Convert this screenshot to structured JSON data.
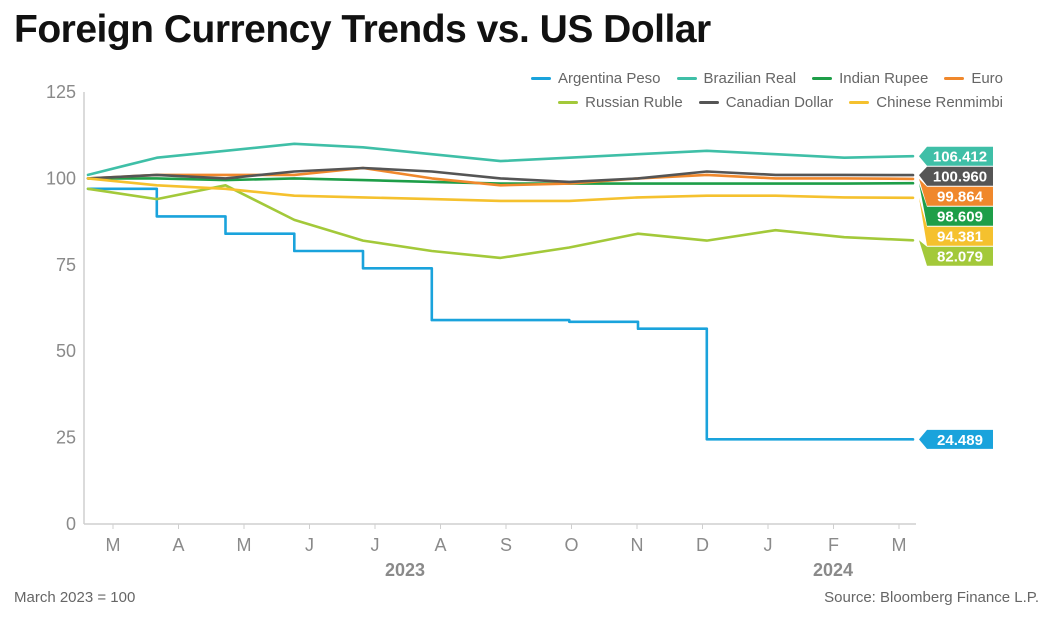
{
  "chart_data": {
    "type": "line",
    "title": "Foreign Currency Trends vs. US Dollar",
    "xlabel": "",
    "ylabel": "",
    "ylim": [
      0,
      125
    ],
    "yticks": [
      0,
      25,
      50,
      75,
      100,
      125
    ],
    "x_tick_labels": [
      "M",
      "A",
      "M",
      "J",
      "J",
      "A",
      "S",
      "O",
      "N",
      "D",
      "J",
      "F",
      "M"
    ],
    "year_labels": [
      "2023",
      "2024"
    ],
    "x": [
      "2023-03",
      "2023-04",
      "2023-05",
      "2023-06",
      "2023-07",
      "2023-08",
      "2023-09",
      "2023-10",
      "2023-11",
      "2023-12",
      "2024-01",
      "2024-02",
      "2024-03"
    ],
    "legend_placement": "top-right",
    "grid": false,
    "series": [
      {
        "name": "Argentina Peso",
        "color": "#1aa3dc",
        "end_label": "24.489",
        "values": [
          97,
          89,
          84,
          79,
          74,
          59,
          59,
          58.5,
          56.5,
          24.5,
          24.5,
          24.5,
          24.489
        ]
      },
      {
        "name": "Brazilian Real",
        "color": "#3fbfa7",
        "end_label": "106.412",
        "values": [
          101,
          106,
          108,
          110,
          109,
          107,
          105,
          106,
          107,
          108,
          107,
          106,
          106.412
        ]
      },
      {
        "name": "Indian Rupee",
        "color": "#1e9e48",
        "end_label": "98.609",
        "values": [
          100,
          100,
          99.5,
          100,
          99.5,
          99,
          98.5,
          98.5,
          98.5,
          98.5,
          98.5,
          98.5,
          98.609
        ]
      },
      {
        "name": "Euro",
        "color": "#f0882c",
        "end_label": "99.864",
        "values": [
          100,
          101,
          101,
          101,
          103,
          100,
          98,
          98.5,
          100,
          101,
          100,
          100,
          99.864
        ]
      },
      {
        "name": "Russian Ruble",
        "color": "#a3c93a",
        "end_label": "82.079",
        "values": [
          97,
          94,
          98,
          88,
          82,
          79,
          77,
          80,
          84,
          82,
          85,
          83,
          82.079
        ]
      },
      {
        "name": "Canadian Dollar",
        "color": "#555555",
        "end_label": "100.960",
        "values": [
          100,
          101,
          100,
          102,
          103,
          102,
          100,
          99,
          100,
          102,
          101,
          101,
          100.96
        ]
      },
      {
        "name": "Chinese Renmimbi",
        "color": "#f5c12e",
        "end_label": "94.381",
        "values": [
          100,
          98,
          97,
          95,
          94.5,
          94,
          93.5,
          93.5,
          94.5,
          95,
          95,
          94.5,
          94.381
        ]
      }
    ]
  },
  "footer": {
    "note": "March 2023 = 100",
    "source": "Source: Bloomberg Finance L.P."
  }
}
